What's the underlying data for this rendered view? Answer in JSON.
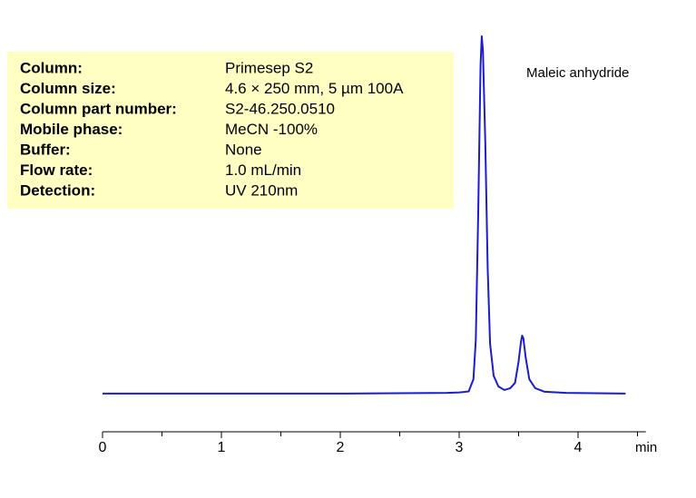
{
  "chart_data": {
    "type": "line",
    "annotation": "Maleic anhydride",
    "x_label": "min",
    "info": {
      "rows": [
        [
          "Column:",
          "Primesep S2"
        ],
        [
          "Column size:",
          "4.6 × 250 mm, 5 µm  100A"
        ],
        [
          "Column part number:",
          "S2-46.250.0510"
        ],
        [
          "Mobile phase:",
          "MeCN -100%"
        ],
        [
          "Buffer:",
          "None"
        ],
        [
          "Flow rate:",
          "1.0 mL/min"
        ],
        [
          "Detection:",
          "UV 210nm"
        ]
      ]
    },
    "x": [
      0,
      1,
      2,
      2.9,
      3.0,
      3.08,
      3.12,
      3.14,
      3.16,
      3.18,
      3.19,
      3.2,
      3.22,
      3.24,
      3.26,
      3.29,
      3.33,
      3.38,
      3.43,
      3.47,
      3.5,
      3.52,
      3.53,
      3.54,
      3.56,
      3.59,
      3.64,
      3.72,
      3.9,
      4.4
    ],
    "values": [
      0,
      0,
      0,
      0.2,
      0.3,
      0.6,
      4,
      15,
      50,
      92,
      100,
      96,
      70,
      35,
      14,
      5,
      2,
      1,
      1.5,
      3,
      9,
      14.5,
      16.2,
      15.5,
      10,
      4,
      1.5,
      0.5,
      0.2,
      0
    ],
    "color": "#1c1cd0",
    "xlim": [
      0,
      4.57
    ],
    "xticks": [
      0,
      1,
      2,
      3,
      4
    ],
    "minor_xticks": [
      0.5,
      1.5,
      2.5,
      3.5,
      4.5
    ],
    "ylim": [
      -10.7,
      100
    ]
  }
}
